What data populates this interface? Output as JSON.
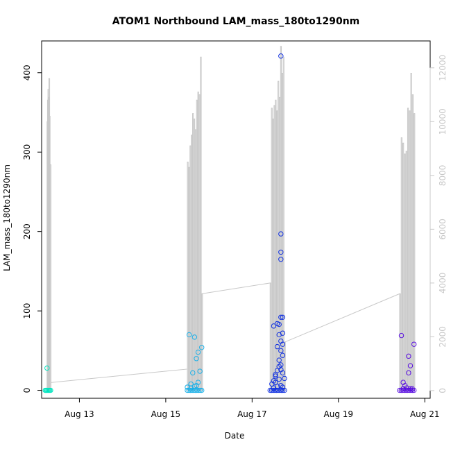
{
  "chart_data": {
    "type": "scatter",
    "title": "ATOM1 Northbound LAM_mass_180to1290nm",
    "xlabel": "Date",
    "ylabel": "LAM_mass_180to1290nm",
    "x_range_days": [
      "Aug 12 03:00",
      "Aug 21 03:00"
    ],
    "ylim": [
      -10,
      440
    ],
    "x_ticks": [
      "Aug 13",
      "Aug 15",
      "Aug 17",
      "Aug 19",
      "Aug 21"
    ],
    "y_ticks": [
      "0",
      "100",
      "200",
      "300",
      "400"
    ],
    "secondary_axis": {
      "ylim": [
        -285,
        13000
      ],
      "ticks": [
        "0",
        "2000",
        "4000",
        "6000",
        "8000",
        "10000",
        "12000"
      ],
      "color": "#c8c8c8"
    },
    "secondary_line": {
      "color": "#c8c8c8",
      "segments": [
        {
          "start": "Aug 12 06:00",
          "end": "Aug 12 08:00",
          "peaks": [
            10000,
            10800,
            11200,
            10900,
            11600,
            10200,
            0,
            8400,
            0
          ]
        },
        {
          "start": "Aug 15 12:00",
          "end": "Aug 15 20:00",
          "peaks": [
            8500,
            8300,
            9100,
            9500,
            10300,
            10100,
            9700,
            10800,
            11100,
            11000,
            12400,
            3600
          ]
        },
        {
          "start": "Aug 17 10:00",
          "end": "Aug 17 18:00",
          "peaks": [
            4000,
            10500,
            10100,
            10600,
            10800,
            10400,
            11500,
            10900,
            12800,
            11800,
            12400,
            1800
          ]
        },
        {
          "start": "Aug 20 10:00",
          "end": "Aug 20 18:00",
          "peaks": [
            3600,
            9400,
            9200,
            8800,
            8900,
            10500,
            10400,
            11800,
            11000,
            10300
          ]
        }
      ],
      "connectors": [
        {
          "from": [
            "Aug 12 08:00",
            300
          ],
          "to": [
            "Aug 15 12:00",
            800
          ]
        },
        {
          "from": [
            "Aug 15 20:00",
            3600
          ],
          "to": [
            "Aug 17 10:00",
            4000
          ]
        },
        {
          "from": [
            "Aug 17 18:00",
            1800
          ],
          "to": [
            "Aug 20 10:00",
            3600
          ]
        }
      ]
    },
    "series": [
      {
        "color": "#00e5c0",
        "baseline": {
          "start": "Aug 12 05:00",
          "end": "Aug 12 08:00"
        },
        "points": [
          [
            "Aug 12 06:00",
            28
          ]
        ]
      },
      {
        "color": "#1ab0e8",
        "baseline": {
          "start": "Aug 15 12:00",
          "end": "Aug 15 20:00"
        },
        "points": [
          [
            "Aug 15 12:00",
            4
          ],
          [
            "Aug 15 14:00",
            8
          ],
          [
            "Aug 15 13:00",
            70
          ],
          [
            "Aug 15 16:00",
            67
          ],
          [
            "Aug 15 18:00",
            48
          ],
          [
            "Aug 15 17:00",
            40
          ],
          [
            "Aug 15 20:00",
            54
          ],
          [
            "Aug 15 19:00",
            24
          ],
          [
            "Aug 15 15:00",
            22
          ],
          [
            "Aug 15 16:00",
            5
          ],
          [
            "Aug 15 18:00",
            10
          ],
          [
            "Aug 15 14:00",
            3
          ],
          [
            "Aug 15 17:00",
            6
          ]
        ]
      },
      {
        "color": "#1030e0",
        "baseline": {
          "start": "Aug 17 10:00",
          "end": "Aug 17 18:00"
        },
        "points": [
          [
            "Aug 17 16:00",
            421
          ],
          [
            "Aug 17 16:00",
            197
          ],
          [
            "Aug 17 16:00",
            174
          ],
          [
            "Aug 17 16:00",
            165
          ],
          [
            "Aug 17 17:00",
            92
          ],
          [
            "Aug 17 16:00",
            92
          ],
          [
            "Aug 17 14:00",
            84
          ],
          [
            "Aug 17 12:00",
            81
          ],
          [
            "Aug 17 15:00",
            83
          ],
          [
            "Aug 17 17:00",
            72
          ],
          [
            "Aug 17 15:00",
            70
          ],
          [
            "Aug 17 16:00",
            62
          ],
          [
            "Aug 17 17:00",
            58
          ],
          [
            "Aug 17 14:00",
            55
          ],
          [
            "Aug 17 16:00",
            50
          ],
          [
            "Aug 17 17:00",
            44
          ],
          [
            "Aug 17 15:00",
            38
          ],
          [
            "Aug 17 16:00",
            32
          ],
          [
            "Aug 17 14:00",
            25
          ],
          [
            "Aug 17 17:00",
            22
          ],
          [
            "Aug 17 13:00",
            18
          ],
          [
            "Aug 17 12:00",
            12
          ],
          [
            "Aug 17 15:00",
            14
          ],
          [
            "Aug 17 11:00",
            8
          ],
          [
            "Aug 17 13:00",
            10
          ],
          [
            "Aug 17 16:00",
            6
          ],
          [
            "Aug 17 17:00",
            4
          ],
          [
            "Aug 17 12:00",
            3
          ],
          [
            "Aug 17 14:00",
            5
          ],
          [
            "Aug 17 18:00",
            15
          ],
          [
            "Aug 17 16:00",
            26
          ],
          [
            "Aug 17 15:00",
            30
          ],
          [
            "Aug 17 13:00",
            20
          ]
        ]
      },
      {
        "color": "#5a10e0",
        "baseline": {
          "start": "Aug 20 10:00",
          "end": "Aug 20 18:00"
        },
        "points": [
          [
            "Aug 20 11:00",
            69
          ],
          [
            "Aug 20 18:00",
            58
          ],
          [
            "Aug 20 15:00",
            43
          ],
          [
            "Aug 20 16:00",
            31
          ],
          [
            "Aug 20 15:00",
            22
          ],
          [
            "Aug 20 12:00",
            10
          ],
          [
            "Aug 20 13:00",
            6
          ],
          [
            "Aug 20 14:00",
            3
          ],
          [
            "Aug 20 17:00",
            2
          ],
          [
            "Aug 20 12:00",
            2
          ],
          [
            "Aug 20 16:00",
            2
          ]
        ]
      }
    ]
  }
}
